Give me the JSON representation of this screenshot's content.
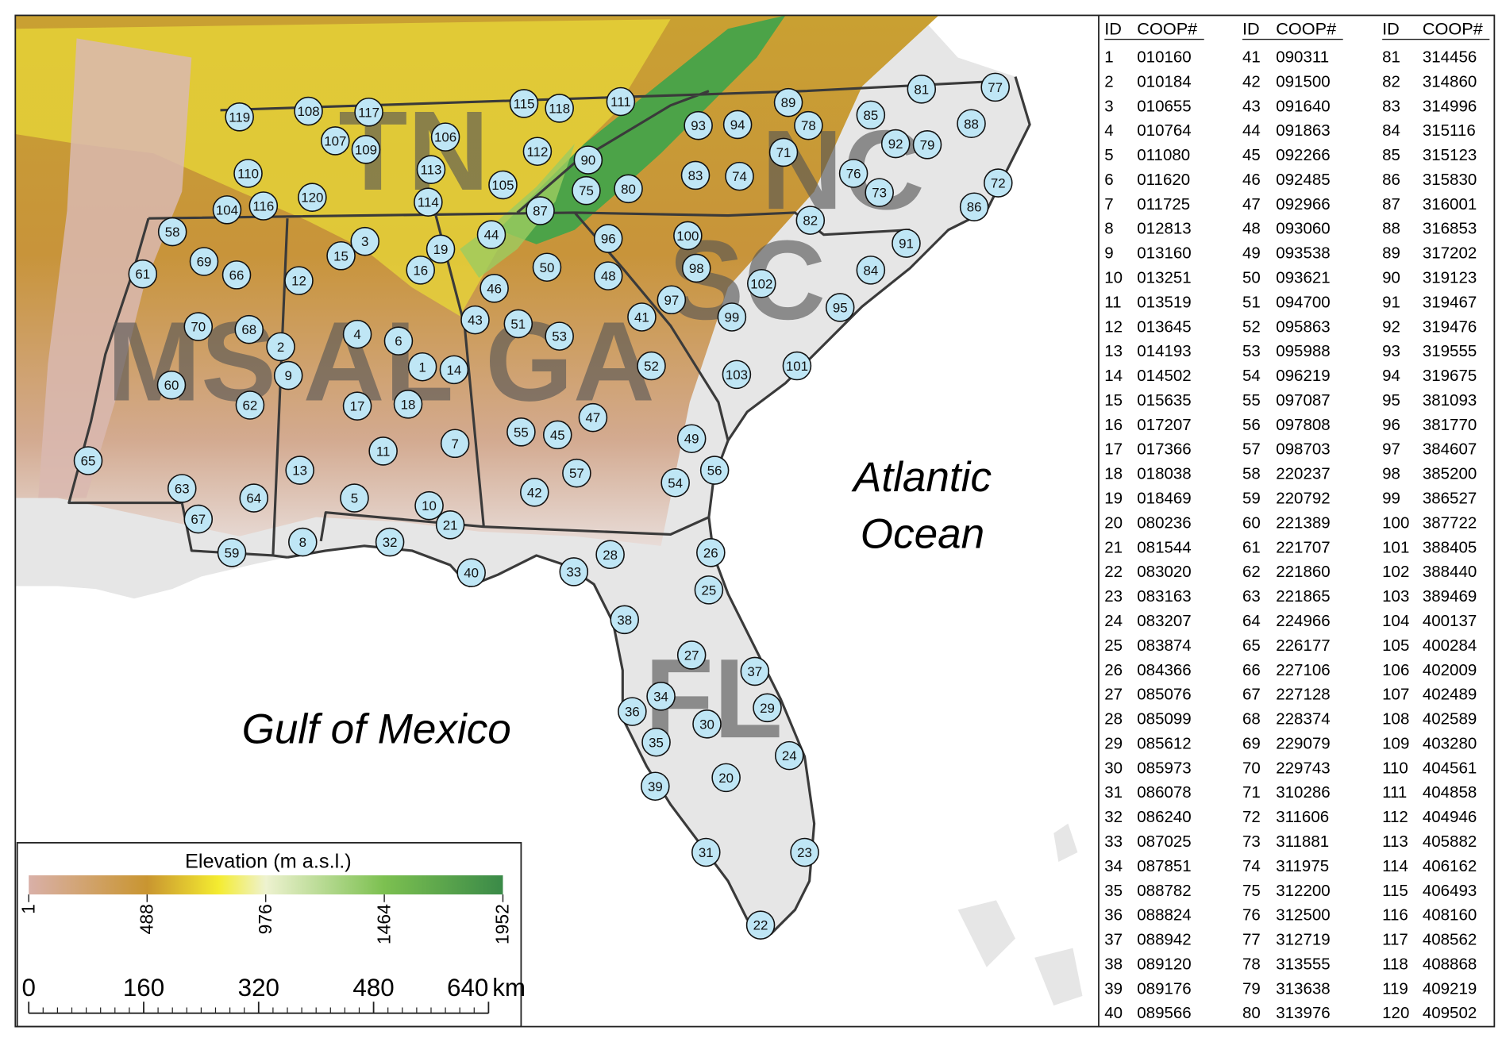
{
  "labels": {
    "states": [
      "TN",
      "NC",
      "MS",
      "AL",
      "GA",
      "SC",
      "FL"
    ],
    "gulf": "Gulf of Mexico",
    "atlantic": [
      "Atlantic",
      "Ocean"
    ]
  },
  "legend": {
    "title": "Elevation (m a.s.l.)",
    "ticks": [
      1,
      488,
      976,
      1464,
      1952
    ]
  },
  "scale_bar": {
    "ticks": [
      0,
      160,
      320,
      480,
      640
    ],
    "unit": "km"
  },
  "table": {
    "headers": [
      "ID",
      "COOP#"
    ],
    "rows": [
      [
        1,
        "010160"
      ],
      [
        2,
        "010184"
      ],
      [
        3,
        "010655"
      ],
      [
        4,
        "010764"
      ],
      [
        5,
        "011080"
      ],
      [
        6,
        "011620"
      ],
      [
        7,
        "011725"
      ],
      [
        8,
        "012813"
      ],
      [
        9,
        "013160"
      ],
      [
        10,
        "013251"
      ],
      [
        11,
        "013519"
      ],
      [
        12,
        "013645"
      ],
      [
        13,
        "014193"
      ],
      [
        14,
        "014502"
      ],
      [
        15,
        "015635"
      ],
      [
        16,
        "017207"
      ],
      [
        17,
        "017366"
      ],
      [
        18,
        "018038"
      ],
      [
        19,
        "018469"
      ],
      [
        20,
        "080236"
      ],
      [
        21,
        "081544"
      ],
      [
        22,
        "083020"
      ],
      [
        23,
        "083163"
      ],
      [
        24,
        "083207"
      ],
      [
        25,
        "083874"
      ],
      [
        26,
        "084366"
      ],
      [
        27,
        "085076"
      ],
      [
        28,
        "085099"
      ],
      [
        29,
        "085612"
      ],
      [
        30,
        "085973"
      ],
      [
        31,
        "086078"
      ],
      [
        32,
        "086240"
      ],
      [
        33,
        "087025"
      ],
      [
        34,
        "087851"
      ],
      [
        35,
        "088782"
      ],
      [
        36,
        "088824"
      ],
      [
        37,
        "088942"
      ],
      [
        38,
        "089120"
      ],
      [
        39,
        "089176"
      ],
      [
        40,
        "089566"
      ],
      [
        41,
        "090311"
      ],
      [
        42,
        "091500"
      ],
      [
        43,
        "091640"
      ],
      [
        44,
        "091863"
      ],
      [
        45,
        "092266"
      ],
      [
        46,
        "092485"
      ],
      [
        47,
        "092966"
      ],
      [
        48,
        "093060"
      ],
      [
        49,
        "093538"
      ],
      [
        50,
        "093621"
      ],
      [
        51,
        "094700"
      ],
      [
        52,
        "095863"
      ],
      [
        53,
        "095988"
      ],
      [
        54,
        "096219"
      ],
      [
        55,
        "097087"
      ],
      [
        56,
        "097808"
      ],
      [
        57,
        "098703"
      ],
      [
        58,
        "220237"
      ],
      [
        59,
        "220792"
      ],
      [
        60,
        "221389"
      ],
      [
        61,
        "221707"
      ],
      [
        62,
        "221860"
      ],
      [
        63,
        "221865"
      ],
      [
        64,
        "224966"
      ],
      [
        65,
        "226177"
      ],
      [
        66,
        "227106"
      ],
      [
        67,
        "227128"
      ],
      [
        68,
        "228374"
      ],
      [
        69,
        "229079"
      ],
      [
        70,
        "229743"
      ],
      [
        71,
        "310286"
      ],
      [
        72,
        "311606"
      ],
      [
        73,
        "311881"
      ],
      [
        74,
        "311975"
      ],
      [
        75,
        "312200"
      ],
      [
        76,
        "312500"
      ],
      [
        77,
        "312719"
      ],
      [
        78,
        "313555"
      ],
      [
        79,
        "313638"
      ],
      [
        80,
        "313976"
      ],
      [
        81,
        "314456"
      ],
      [
        82,
        "314860"
      ],
      [
        83,
        "314996"
      ],
      [
        84,
        "315116"
      ],
      [
        85,
        "315123"
      ],
      [
        86,
        "315830"
      ],
      [
        87,
        "316001"
      ],
      [
        88,
        "316853"
      ],
      [
        89,
        "317202"
      ],
      [
        90,
        "319123"
      ],
      [
        91,
        "319467"
      ],
      [
        92,
        "319476"
      ],
      [
        93,
        "319555"
      ],
      [
        94,
        "319675"
      ],
      [
        95,
        "381093"
      ],
      [
        96,
        "381770"
      ],
      [
        97,
        "384607"
      ],
      [
        98,
        "385200"
      ],
      [
        99,
        "386527"
      ],
      [
        100,
        "387722"
      ],
      [
        101,
        "388405"
      ],
      [
        102,
        "388440"
      ],
      [
        103,
        "389469"
      ],
      [
        104,
        "400137"
      ],
      [
        105,
        "400284"
      ],
      [
        106,
        "402009"
      ],
      [
        107,
        "402489"
      ],
      [
        108,
        "402589"
      ],
      [
        109,
        "403280"
      ],
      [
        110,
        "404561"
      ],
      [
        111,
        "404858"
      ],
      [
        112,
        "404946"
      ],
      [
        113,
        "405882"
      ],
      [
        114,
        "406162"
      ],
      [
        115,
        "406493"
      ],
      [
        116,
        "408160"
      ],
      [
        117,
        "408562"
      ],
      [
        118,
        "408868"
      ],
      [
        119,
        "409219"
      ],
      [
        120,
        "409502"
      ]
    ]
  }
}
